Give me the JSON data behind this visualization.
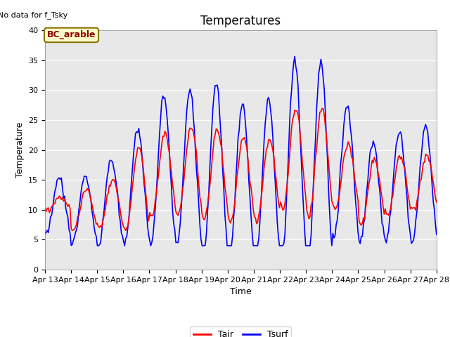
{
  "title": "Temperatures",
  "xlabel": "Time",
  "ylabel": "Temperature",
  "ylim": [
    0,
    40
  ],
  "note": "No data for f_Tsky",
  "annotation": "BC_arable",
  "line_Tair_color": "red",
  "line_Tsurf_color": "blue",
  "line_Tair_label": "Tair",
  "line_Tsurf_label": "Tsurf",
  "line_width": 1.2,
  "x_tick_labels": [
    "Apr 13",
    "Apr 14",
    "Apr 15",
    "Apr 16",
    "Apr 17",
    "Apr 18",
    "Apr 19",
    "Apr 20",
    "Apr 21",
    "Apr 22",
    "Apr 23",
    "Apr 24",
    "Apr 25",
    "Apr 26",
    "Apr 27",
    "Apr 28"
  ],
  "background_color": "#e8e8e8",
  "fig_color": "#ffffff",
  "grid_color": "#ffffff",
  "title_fontsize": 12,
  "label_fontsize": 9,
  "tick_fontsize": 8,
  "note_fontsize": 8,
  "annot_fontsize": 9
}
